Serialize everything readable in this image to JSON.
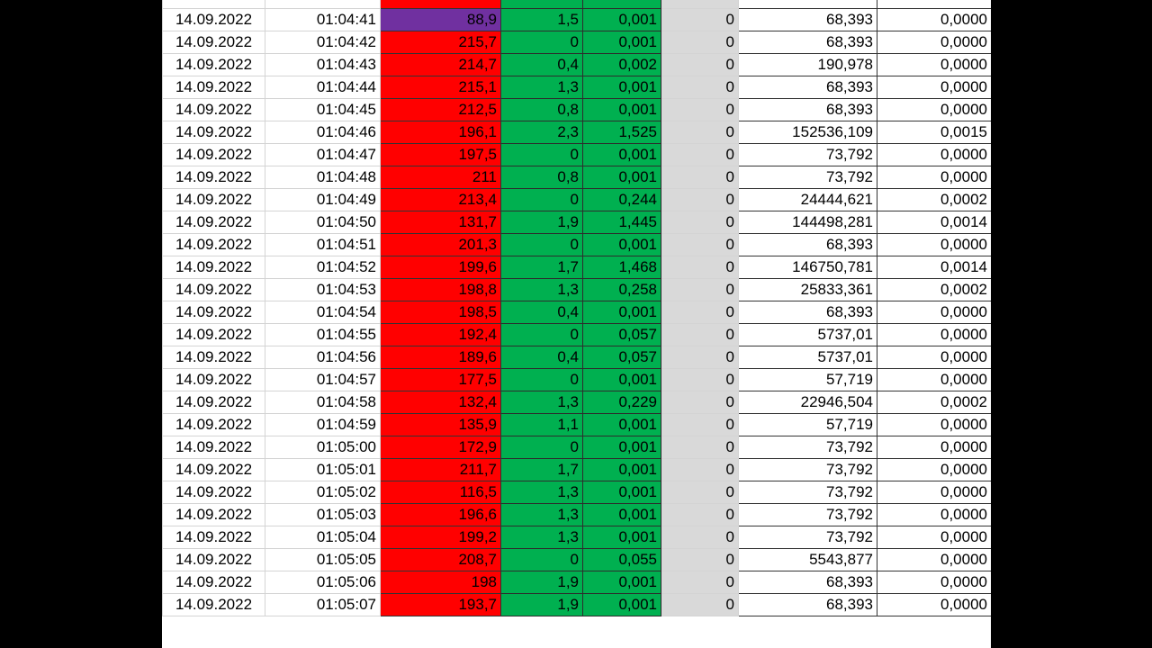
{
  "rows": [
    {
      "date": "14.09.2022",
      "time": "01:04:41",
      "v1": "88,9",
      "v2": "1,5",
      "v3": "0,001",
      "v4": "0",
      "v5": "68,393",
      "v6": "0,0000",
      "purple": true
    },
    {
      "date": "14.09.2022",
      "time": "01:04:42",
      "v1": "215,7",
      "v2": "0",
      "v3": "0,001",
      "v4": "0",
      "v5": "68,393",
      "v6": "0,0000"
    },
    {
      "date": "14.09.2022",
      "time": "01:04:43",
      "v1": "214,7",
      "v2": "0,4",
      "v3": "0,002",
      "v4": "0",
      "v5": "190,978",
      "v6": "0,0000"
    },
    {
      "date": "14.09.2022",
      "time": "01:04:44",
      "v1": "215,1",
      "v2": "1,3",
      "v3": "0,001",
      "v4": "0",
      "v5": "68,393",
      "v6": "0,0000"
    },
    {
      "date": "14.09.2022",
      "time": "01:04:45",
      "v1": "212,5",
      "v2": "0,8",
      "v3": "0,001",
      "v4": "0",
      "v5": "68,393",
      "v6": "0,0000"
    },
    {
      "date": "14.09.2022",
      "time": "01:04:46",
      "v1": "196,1",
      "v2": "2,3",
      "v3": "1,525",
      "v4": "0",
      "v5": "152536,109",
      "v6": "0,0015"
    },
    {
      "date": "14.09.2022",
      "time": "01:04:47",
      "v1": "197,5",
      "v2": "0",
      "v3": "0,001",
      "v4": "0",
      "v5": "73,792",
      "v6": "0,0000"
    },
    {
      "date": "14.09.2022",
      "time": "01:04:48",
      "v1": "211",
      "v2": "0,8",
      "v3": "0,001",
      "v4": "0",
      "v5": "73,792",
      "v6": "0,0000"
    },
    {
      "date": "14.09.2022",
      "time": "01:04:49",
      "v1": "213,4",
      "v2": "0",
      "v3": "0,244",
      "v4": "0",
      "v5": "24444,621",
      "v6": "0,0002"
    },
    {
      "date": "14.09.2022",
      "time": "01:04:50",
      "v1": "131,7",
      "v2": "1,9",
      "v3": "1,445",
      "v4": "0",
      "v5": "144498,281",
      "v6": "0,0014"
    },
    {
      "date": "14.09.2022",
      "time": "01:04:51",
      "v1": "201,3",
      "v2": "0",
      "v3": "0,001",
      "v4": "0",
      "v5": "68,393",
      "v6": "0,0000"
    },
    {
      "date": "14.09.2022",
      "time": "01:04:52",
      "v1": "199,6",
      "v2": "1,7",
      "v3": "1,468",
      "v4": "0",
      "v5": "146750,781",
      "v6": "0,0014"
    },
    {
      "date": "14.09.2022",
      "time": "01:04:53",
      "v1": "198,8",
      "v2": "1,3",
      "v3": "0,258",
      "v4": "0",
      "v5": "25833,361",
      "v6": "0,0002"
    },
    {
      "date": "14.09.2022",
      "time": "01:04:54",
      "v1": "198,5",
      "v2": "0,4",
      "v3": "0,001",
      "v4": "0",
      "v5": "68,393",
      "v6": "0,0000"
    },
    {
      "date": "14.09.2022",
      "time": "01:04:55",
      "v1": "192,4",
      "v2": "0",
      "v3": "0,057",
      "v4": "0",
      "v5": "5737,01",
      "v6": "0,0000"
    },
    {
      "date": "14.09.2022",
      "time": "01:04:56",
      "v1": "189,6",
      "v2": "0,4",
      "v3": "0,057",
      "v4": "0",
      "v5": "5737,01",
      "v6": "0,0000"
    },
    {
      "date": "14.09.2022",
      "time": "01:04:57",
      "v1": "177,5",
      "v2": "0",
      "v3": "0,001",
      "v4": "0",
      "v5": "57,719",
      "v6": "0,0000"
    },
    {
      "date": "14.09.2022",
      "time": "01:04:58",
      "v1": "132,4",
      "v2": "1,3",
      "v3": "0,229",
      "v4": "0",
      "v5": "22946,504",
      "v6": "0,0002"
    },
    {
      "date": "14.09.2022",
      "time": "01:04:59",
      "v1": "135,9",
      "v2": "1,1",
      "v3": "0,001",
      "v4": "0",
      "v5": "57,719",
      "v6": "0,0000"
    },
    {
      "date": "14.09.2022",
      "time": "01:05:00",
      "v1": "172,9",
      "v2": "0",
      "v3": "0,001",
      "v4": "0",
      "v5": "73,792",
      "v6": "0,0000"
    },
    {
      "date": "14.09.2022",
      "time": "01:05:01",
      "v1": "211,7",
      "v2": "1,7",
      "v3": "0,001",
      "v4": "0",
      "v5": "73,792",
      "v6": "0,0000"
    },
    {
      "date": "14.09.2022",
      "time": "01:05:02",
      "v1": "116,5",
      "v2": "1,3",
      "v3": "0,001",
      "v4": "0",
      "v5": "73,792",
      "v6": "0,0000"
    },
    {
      "date": "14.09.2022",
      "time": "01:05:03",
      "v1": "196,6",
      "v2": "1,3",
      "v3": "0,001",
      "v4": "0",
      "v5": "73,792",
      "v6": "0,0000"
    },
    {
      "date": "14.09.2022",
      "time": "01:05:04",
      "v1": "199,2",
      "v2": "1,3",
      "v3": "0,001",
      "v4": "0",
      "v5": "73,792",
      "v6": "0,0000"
    },
    {
      "date": "14.09.2022",
      "time": "01:05:05",
      "v1": "208,7",
      "v2": "0",
      "v3": "0,055",
      "v4": "0",
      "v5": "5543,877",
      "v6": "0,0000"
    },
    {
      "date": "14.09.2022",
      "time": "01:05:06",
      "v1": "198",
      "v2": "1,9",
      "v3": "0,001",
      "v4": "0",
      "v5": "68,393",
      "v6": "0,0000"
    },
    {
      "date": "14.09.2022",
      "time": "01:05:07",
      "v1": "193,7",
      "v2": "1,9",
      "v3": "0,001",
      "v4": "0",
      "v5": "68,393",
      "v6": "0,0000"
    }
  ],
  "colors": {
    "red": "#ff0000",
    "green": "#00b050",
    "gray": "#d9d9d9",
    "purple": "#7030a0"
  }
}
